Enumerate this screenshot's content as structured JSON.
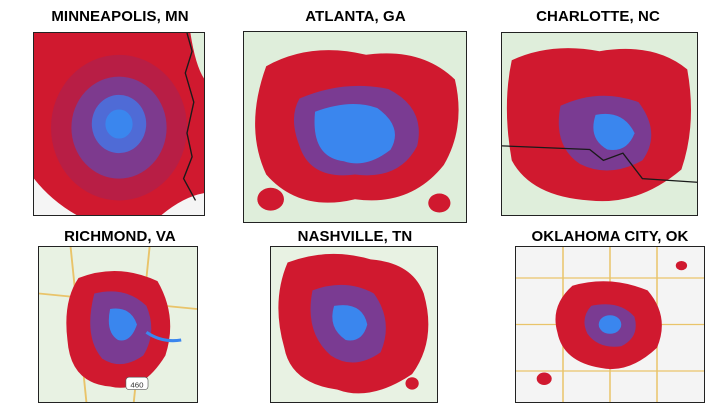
{
  "panels": [
    {
      "title": "MINNEAPOLIS, MN",
      "shield": "",
      "has_border_line": true
    },
    {
      "title": "ATLANTA, GA",
      "shield": "",
      "has_border_line": false
    },
    {
      "title": "CHARLOTTE, NC",
      "shield": "",
      "has_border_line": true
    },
    {
      "title": "RICHMOND, VA",
      "shield": "460",
      "has_border_line": false
    },
    {
      "title": "NASHVILLE, TN",
      "shield": "",
      "has_border_line": false
    },
    {
      "title": "OKLAHOMA CITY, OK",
      "shield": "",
      "has_border_line": false
    }
  ],
  "colors": {
    "urban_core": "#3a7de8",
    "mixed": "#6a3fa0",
    "sprawl": "#d8162e",
    "rural": "#e3f0de",
    "state_border": "#1a1a1a",
    "road": "#e9c46a"
  }
}
